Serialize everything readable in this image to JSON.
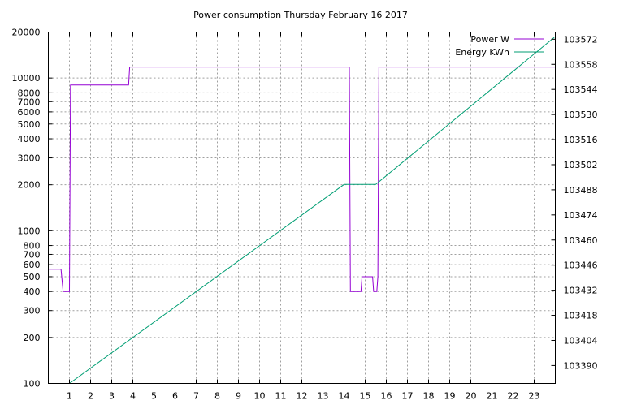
{
  "chart_data": {
    "type": "line",
    "title": "Power consumption Thursday February 16 2017",
    "xlabel": "",
    "ylabel": "",
    "y2label": "",
    "x_ticks": [
      1,
      2,
      3,
      4,
      5,
      6,
      7,
      8,
      9,
      10,
      11,
      12,
      13,
      14,
      15,
      16,
      17,
      18,
      19,
      20,
      21,
      22,
      23
    ],
    "xlim": [
      0,
      24
    ],
    "y_scale": "log",
    "ylim": [
      100,
      20000
    ],
    "y_ticks": [
      {
        "value": 100,
        "label": "100"
      },
      {
        "value": 200,
        "label": "200"
      },
      {
        "value": 300,
        "label": "300"
      },
      {
        "value": 400,
        "label": "400"
      },
      {
        "value": 500,
        "label": "500"
      },
      {
        "value": 600,
        "label": "600"
      },
      {
        "value": 700,
        "label": "700"
      },
      {
        "value": 800,
        "label": "800"
      },
      {
        "value": 1000,
        "label": "1000"
      },
      {
        "value": 2000,
        "label": "2000"
      },
      {
        "value": 3000,
        "label": "3000"
      },
      {
        "value": 4000,
        "label": "4000"
      },
      {
        "value": 5000,
        "label": "5000"
      },
      {
        "value": 6000,
        "label": "6000"
      },
      {
        "value": 7000,
        "label": "7000"
      },
      {
        "value": 8000,
        "label": "8000"
      },
      {
        "value": 10000,
        "label": "10000"
      },
      {
        "value": 20000,
        "label": "20000"
      }
    ],
    "y2lim": [
      103380,
      103576
    ],
    "y2_ticks": [
      103390,
      103404,
      103418,
      103432,
      103446,
      103460,
      103474,
      103488,
      103502,
      103516,
      103530,
      103544,
      103558,
      103572
    ],
    "grid": true,
    "legend_position": "top-right",
    "series": [
      {
        "name": "Power W",
        "color": "#9400d3",
        "axis": "left",
        "points": [
          [
            0,
            560
          ],
          [
            0.6,
            560
          ],
          [
            0.7,
            400
          ],
          [
            0.95,
            400
          ],
          [
            1.0,
            400
          ],
          [
            1.05,
            9000
          ],
          [
            3.8,
            9000
          ],
          [
            3.85,
            11800
          ],
          [
            14.25,
            11800
          ],
          [
            14.3,
            400
          ],
          [
            14.8,
            400
          ],
          [
            14.85,
            500
          ],
          [
            15.35,
            500
          ],
          [
            15.4,
            400
          ],
          [
            15.55,
            400
          ],
          [
            15.6,
            500
          ],
          [
            15.65,
            11800
          ],
          [
            24,
            11800
          ]
        ]
      },
      {
        "name": "Energy KWh",
        "color": "#009e73",
        "axis": "right",
        "points": [
          [
            0,
            103380
          ],
          [
            1,
            103380
          ],
          [
            14.0,
            103491
          ],
          [
            15.5,
            103491
          ],
          [
            23.95,
            103573
          ]
        ]
      }
    ]
  }
}
